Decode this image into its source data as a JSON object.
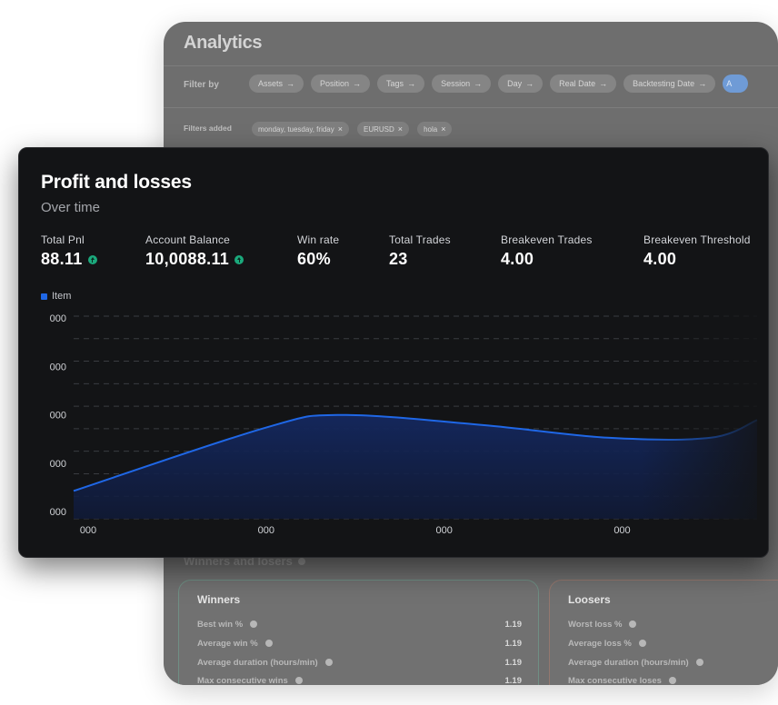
{
  "analytics": {
    "title": "Analytics",
    "filter_label": "Filter by",
    "filters": [
      {
        "label": "Assets"
      },
      {
        "label": "Position"
      },
      {
        "label": "Tags"
      },
      {
        "label": "Session"
      },
      {
        "label": "Day"
      },
      {
        "label": "Real Date"
      },
      {
        "label": "Backtesting Date"
      },
      {
        "label": "A"
      }
    ],
    "filters_added_label": "Filters added",
    "added": [
      {
        "label": "monday, tuesday, friday"
      },
      {
        "label": "EURUSD"
      },
      {
        "label": "hola"
      }
    ],
    "section_title": "Winners and losers",
    "winners": {
      "title": "Winners",
      "rows": [
        {
          "label": "Best win %",
          "value": "1.19"
        },
        {
          "label": "Average win %",
          "value": "1.19"
        },
        {
          "label": "Average duration (hours/min)",
          "value": "1.19"
        },
        {
          "label": "Max consecutive wins",
          "value": "1.19"
        }
      ]
    },
    "losers": {
      "title": "Loosers",
      "rows": [
        {
          "label": "Worst loss %"
        },
        {
          "label": "Average loss %"
        },
        {
          "label": "Average duration (hours/min)"
        },
        {
          "label": "Max consecutive loses"
        }
      ]
    }
  },
  "pnl": {
    "title": "Profit and losses",
    "subtitle": "Over time",
    "metrics": [
      {
        "label": "Total Pnl",
        "value": "88.11",
        "trend": "up"
      },
      {
        "label": "Account Balance",
        "value": "10,0088.11",
        "trend": "up"
      },
      {
        "label": "Win rate",
        "value": "60%"
      },
      {
        "label": "Total Trades",
        "value": "23"
      },
      {
        "label": "Breakeven Trades",
        "value": "4.00"
      },
      {
        "label": "Breakeven Threshold",
        "value": "4.00"
      }
    ]
  },
  "chart_data": {
    "type": "area",
    "title": "Profit and losses",
    "subtitle": "Over time",
    "legend": {
      "position": "top-left",
      "entries": [
        "Item"
      ]
    },
    "series": [
      {
        "name": "Item",
        "color": "#1f67e6",
        "points": [
          [
            0,
            0.55
          ],
          [
            1.08,
            1.8
          ],
          [
            1.5,
            2.05
          ],
          [
            2.3,
            1.85
          ],
          [
            3.0,
            1.6
          ],
          [
            3.58,
            1.6
          ],
          [
            3.84,
            1.95
          ]
        ]
      }
    ],
    "xticks": [
      "000",
      "000",
      "000",
      "000"
    ],
    "yticks": [
      "000",
      "000",
      "000",
      "000",
      "000"
    ],
    "ylim": [
      0,
      4
    ],
    "xlim": [
      0,
      3.84
    ],
    "grid": true
  }
}
